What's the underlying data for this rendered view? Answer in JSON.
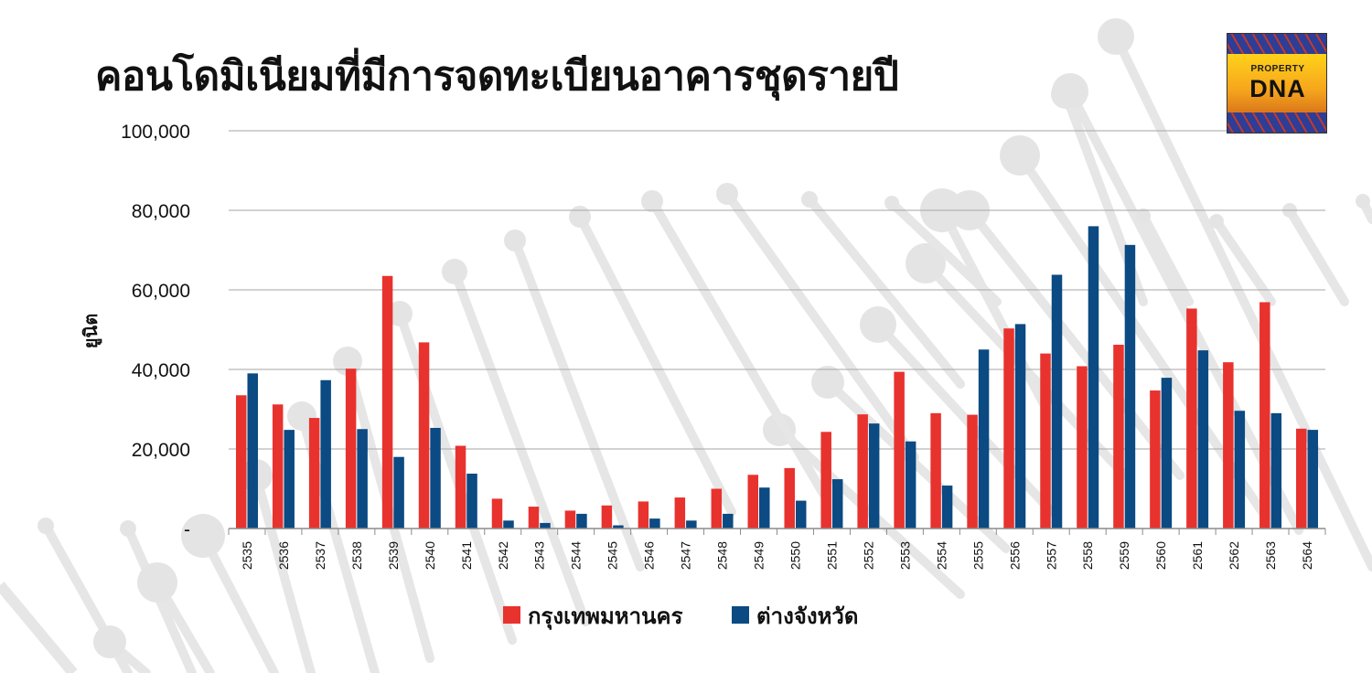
{
  "title": "คอนโดมิเนียมที่มีการจดทะเบียนอาคารชุดรายปี",
  "logo": {
    "line1": "PROPERTY",
    "line2": "DNA"
  },
  "chart_data": {
    "type": "bar",
    "ylabel": "ยูนิต",
    "ylim": [
      0,
      100000
    ],
    "yticks": [
      0,
      20000,
      40000,
      60000,
      80000,
      100000
    ],
    "ytick_labels": [
      "-",
      "20,000",
      "40,000",
      "60,000",
      "80,000",
      "100,000"
    ],
    "grid": true,
    "legend_position": "bottom",
    "categories": [
      "2535",
      "2536",
      "2537",
      "2538",
      "2539",
      "2540",
      "2541",
      "2542",
      "2543",
      "2544",
      "2545",
      "2546",
      "2547",
      "2548",
      "2549",
      "2550",
      "2551",
      "2552",
      "2553",
      "2554",
      "2555",
      "2556",
      "2557",
      "2558",
      "2559",
      "2560",
      "2561",
      "2562",
      "2563",
      "2564"
    ],
    "series": [
      {
        "name": "กรุงเทพมหานคร",
        "color": "#e8322e",
        "values": [
          33500,
          31200,
          27800,
          40200,
          63500,
          46800,
          20800,
          7500,
          5500,
          4500,
          5800,
          6800,
          7800,
          10000,
          13500,
          15200,
          24300,
          28700,
          39400,
          29000,
          28600,
          50300,
          44000,
          40800,
          46200,
          34700,
          55300,
          41800,
          56900,
          25100
        ]
      },
      {
        "name": "ต่างจังหวัด",
        "color": "#0b4a82",
        "values": [
          39000,
          24800,
          37300,
          25000,
          18000,
          25300,
          13800,
          2000,
          1400,
          3700,
          800,
          2500,
          2000,
          3700,
          10300,
          7000,
          12400,
          26400,
          21900,
          10800,
          45000,
          51400,
          63800,
          76000,
          71300,
          37900,
          44800,
          29600,
          29000,
          24800
        ]
      }
    ]
  }
}
